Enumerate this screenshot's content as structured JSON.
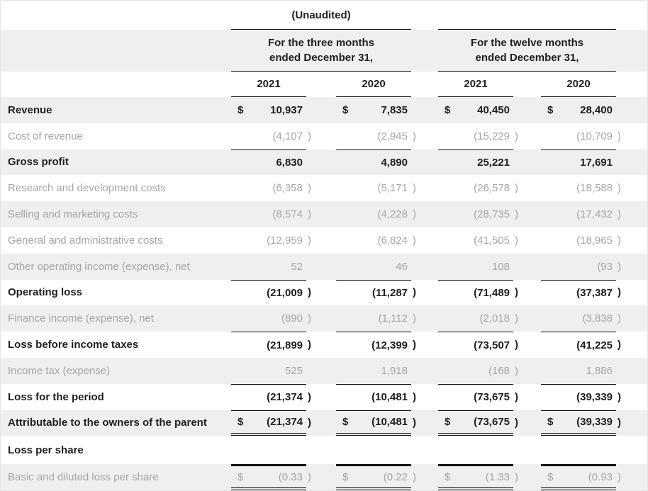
{
  "page": {
    "unaudited_label": "(Unaudited)",
    "col_groups": [
      {
        "title_line1": "For the three months",
        "title_line2": "ended December 31,",
        "years": [
          "2021",
          "2020"
        ]
      },
      {
        "title_line1": "For the twelve months",
        "title_line2": "ended December 31,",
        "years": [
          "2021",
          "2020"
        ]
      }
    ]
  },
  "colors": {
    "band": "#f0efef",
    "text_dark": "#1f1f1f",
    "text_gray": "#a7a6a6",
    "rule_line": "#111111"
  },
  "rows": [
    {
      "label": "Revenue",
      "bold": true,
      "cells": [
        {
          "dollar": "$",
          "num": "10,937"
        },
        {
          "dollar": "$",
          "num": "7,835"
        },
        {
          "dollar": "$",
          "num": "40,450"
        },
        {
          "dollar": "$",
          "num": "28,400"
        }
      ]
    },
    {
      "label": "Cost of revenue",
      "bold": false,
      "cells": [
        {
          "num": "(4,107",
          "close": ")"
        },
        {
          "num": "(2,945",
          "close": ")"
        },
        {
          "num": "(15,229",
          "close": ")"
        },
        {
          "num": "(10,709",
          "close": ")"
        }
      ]
    },
    {
      "label": "Gross profit",
      "bold": true,
      "top_line": true,
      "cells": [
        {
          "num": "6,830"
        },
        {
          "num": "4,890"
        },
        {
          "num": "25,221"
        },
        {
          "num": "17,691"
        }
      ]
    },
    {
      "label": "Research and development costs",
      "bold": false,
      "cells": [
        {
          "num": "(6,358",
          "close": ")"
        },
        {
          "num": "(5,171",
          "close": ")"
        },
        {
          "num": "(26,578",
          "close": ")"
        },
        {
          "num": "(18,588",
          "close": ")"
        }
      ]
    },
    {
      "label": "Selling and marketing costs",
      "bold": false,
      "cells": [
        {
          "num": "(8,574",
          "close": ")"
        },
        {
          "num": "(4,228",
          "close": ")"
        },
        {
          "num": "(28,735",
          "close": ")"
        },
        {
          "num": "(17,432",
          "close": ")"
        }
      ]
    },
    {
      "label": "General and administrative costs",
      "bold": false,
      "cells": [
        {
          "num": "(12,959",
          "close": ")"
        },
        {
          "num": "(6,824",
          "close": ")"
        },
        {
          "num": "(41,505",
          "close": ")"
        },
        {
          "num": "(18,965",
          "close": ")"
        }
      ]
    },
    {
      "label": "Other operating income (expense), net",
      "bold": false,
      "cells": [
        {
          "num": "52"
        },
        {
          "num": "46"
        },
        {
          "num": "108"
        },
        {
          "num": "(93",
          "close": ")"
        }
      ]
    },
    {
      "label": "Operating loss",
      "bold": true,
      "top_line": true,
      "cells": [
        {
          "num": "(21,009",
          "close": ")"
        },
        {
          "num": "(11,287",
          "close": ")"
        },
        {
          "num": "(71,489",
          "close": ")"
        },
        {
          "num": "(37,387",
          "close": ")"
        }
      ]
    },
    {
      "label": "Finance income (expense), net",
      "bold": false,
      "cells": [
        {
          "num": "(890",
          "close": ")"
        },
        {
          "num": "(1,112",
          "close": ")"
        },
        {
          "num": "(2,018",
          "close": ")"
        },
        {
          "num": "(3,838",
          "close": ")"
        }
      ]
    },
    {
      "label": "Loss before income taxes",
      "bold": true,
      "top_line": true,
      "cells": [
        {
          "num": "(21,899",
          "close": ")"
        },
        {
          "num": "(12,399",
          "close": ")"
        },
        {
          "num": "(73,507",
          "close": ")"
        },
        {
          "num": "(41,225",
          "close": ")"
        }
      ]
    },
    {
      "label": "Income tax (expense)",
      "bold": false,
      "cells": [
        {
          "num": "525"
        },
        {
          "num": "1,918"
        },
        {
          "num": "(168",
          "close": ")"
        },
        {
          "num": "1,886"
        }
      ]
    },
    {
      "label": "Loss for the period",
      "bold": true,
      "top_line": true,
      "cells": [
        {
          "num": "(21,374",
          "close": ")"
        },
        {
          "num": "(10,481",
          "close": ")"
        },
        {
          "num": "(73,675",
          "close": ")"
        },
        {
          "num": "(39,339",
          "close": ")"
        }
      ]
    },
    {
      "label": "Attributable to the owners of the parent",
      "bold": true,
      "top_line": true,
      "double_bottom": true,
      "cells": [
        {
          "dollar": "$",
          "num": "(21,374",
          "close": ")"
        },
        {
          "dollar": "$",
          "num": "(10,481",
          "close": ")"
        },
        {
          "dollar": "$",
          "num": "(73,675",
          "close": ")"
        },
        {
          "dollar": "$",
          "num": "(39,339",
          "close": ")"
        }
      ]
    },
    {
      "label": "Loss per share",
      "bold": true,
      "tall": true,
      "cells": [
        {},
        {},
        {},
        {}
      ]
    },
    {
      "label": "Basic and diluted loss per share",
      "bold": false,
      "thick_top": true,
      "double_bottom": true,
      "cells": [
        {
          "dollar": "$",
          "num": "(0.33",
          "close": ")"
        },
        {
          "dollar": "$",
          "num": "(0.22",
          "close": ")"
        },
        {
          "dollar": "$",
          "num": "(1.33",
          "close": ")"
        },
        {
          "dollar": "$",
          "num": "(0.93",
          "close": ")"
        }
      ]
    }
  ]
}
